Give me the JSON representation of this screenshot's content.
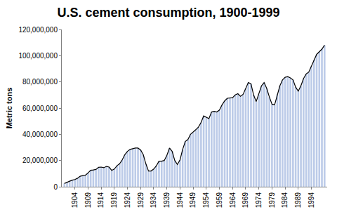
{
  "chart_data": {
    "type": "bar",
    "title": "U.S. cement consumption, 1900-1999",
    "y_label": "Metric tons",
    "x": [
      1900,
      1901,
      1902,
      1903,
      1904,
      1905,
      1906,
      1907,
      1908,
      1909,
      1910,
      1911,
      1912,
      1913,
      1914,
      1915,
      1916,
      1917,
      1918,
      1919,
      1920,
      1921,
      1922,
      1923,
      1924,
      1925,
      1926,
      1927,
      1928,
      1929,
      1930,
      1931,
      1932,
      1933,
      1934,
      1935,
      1936,
      1937,
      1938,
      1939,
      1940,
      1941,
      1942,
      1943,
      1944,
      1945,
      1946,
      1947,
      1948,
      1949,
      1950,
      1951,
      1952,
      1953,
      1954,
      1955,
      1956,
      1957,
      1958,
      1959,
      1960,
      1961,
      1962,
      1963,
      1964,
      1965,
      1966,
      1967,
      1968,
      1969,
      1970,
      1971,
      1972,
      1973,
      1974,
      1975,
      1976,
      1977,
      1978,
      1979,
      1980,
      1981,
      1982,
      1983,
      1984,
      1985,
      1986,
      1987,
      1988,
      1989,
      1990,
      1991,
      1992,
      1993,
      1994,
      1995,
      1996,
      1997,
      1998,
      1999
    ],
    "series": [
      {
        "type": "bar",
        "color": "#bccbe8",
        "values": [
          2500000,
          3500000,
          4200000,
          5000000,
          5500000,
          6500000,
          8000000,
          8500000,
          8800000,
          10500000,
          12500000,
          12800000,
          13200000,
          14800000,
          15000000,
          14500000,
          15500000,
          15000000,
          12500000,
          13500000,
          16000000,
          17500000,
          20500000,
          24500000,
          27000000,
          28500000,
          29000000,
          29500000,
          29500000,
          28000000,
          24500000,
          17500000,
          12000000,
          12000000,
          13500000,
          16000000,
          19500000,
          19500000,
          20000000,
          24000000,
          29500000,
          27000000,
          20000000,
          17000000,
          20500000,
          28500000,
          34500000,
          36000000,
          40000000,
          41500000,
          43500000,
          45500000,
          49000000,
          54000000,
          53000000,
          52000000,
          57000000,
          57500000,
          57000000,
          58500000,
          62500000,
          65500000,
          67500000,
          67800000,
          68000000,
          70000000,
          71000000,
          69000000,
          70500000,
          75000000,
          79500000,
          78500000,
          70000000,
          65000000,
          70500000,
          77000000,
          79500000,
          75000000,
          68500000,
          63000000,
          62500000,
          70500000,
          77000000,
          81500000,
          83500000,
          84000000,
          83000000,
          81500000,
          76000000,
          73000000,
          77000000,
          82500000,
          86000000,
          87500000,
          92000000,
          97000000,
          101000000,
          103000000,
          105000000,
          108000000
        ]
      },
      {
        "type": "line",
        "color": "#000000",
        "values": [
          2500000,
          3500000,
          4200000,
          5000000,
          5500000,
          6500000,
          8000000,
          8500000,
          8800000,
          10500000,
          12500000,
          12800000,
          13200000,
          14800000,
          15000000,
          14500000,
          15500000,
          15000000,
          12500000,
          13500000,
          16000000,
          17500000,
          20500000,
          24500000,
          27000000,
          28500000,
          29000000,
          29500000,
          29500000,
          28000000,
          24500000,
          17500000,
          12000000,
          12000000,
          13500000,
          16000000,
          19500000,
          19500000,
          20000000,
          24000000,
          29500000,
          27000000,
          20000000,
          17000000,
          20500000,
          28500000,
          34500000,
          36000000,
          40000000,
          41500000,
          43500000,
          45500000,
          49000000,
          54000000,
          53000000,
          52000000,
          57000000,
          57500000,
          57000000,
          58500000,
          62500000,
          65500000,
          67500000,
          67800000,
          68000000,
          70000000,
          71000000,
          69000000,
          70500000,
          75000000,
          79500000,
          78500000,
          70000000,
          65000000,
          70500000,
          77000000,
          79500000,
          75000000,
          68500000,
          63000000,
          62500000,
          70500000,
          77000000,
          81500000,
          83500000,
          84000000,
          83000000,
          81500000,
          76000000,
          73000000,
          77000000,
          82500000,
          86000000,
          87500000,
          92000000,
          97000000,
          101000000,
          103000000,
          105000000,
          108000000
        ]
      }
    ],
    "xlim": [
      1899,
      2000
    ],
    "xticks": [
      1904,
      1909,
      1914,
      1919,
      1924,
      1929,
      1934,
      1939,
      1944,
      1949,
      1954,
      1959,
      1964,
      1969,
      1974,
      1979,
      1984,
      1989,
      1994
    ],
    "ylim": [
      0,
      120000000
    ],
    "yticks": [
      0,
      {
        "value": 20000000,
        "label": "20,000,000"
      },
      {
        "value": 40000000,
        "label": "40,000,000"
      },
      {
        "value": 60000000,
        "label": "60,000,000"
      },
      {
        "value": 80000000,
        "label": "80,000,000"
      },
      {
        "value": 100000000,
        "label": "100,000,000"
      },
      {
        "value": 120000000,
        "label": "120,000,000"
      }
    ],
    "grid": false
  }
}
